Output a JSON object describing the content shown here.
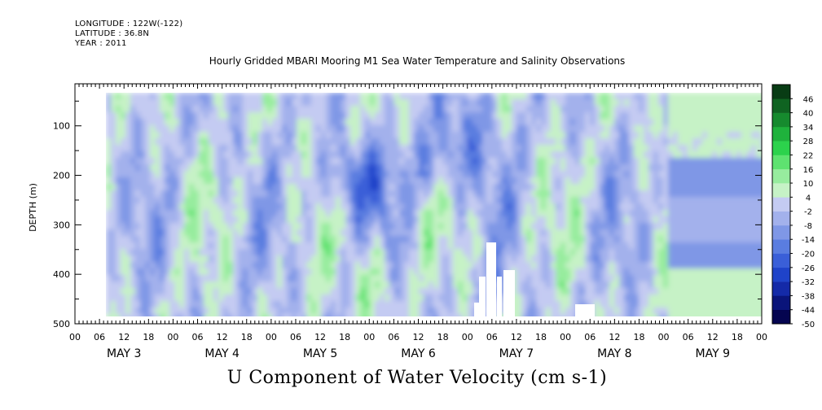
{
  "header": {
    "longitude": "LONGITUDE : 122W(-122)",
    "latitude": "LATITUDE : 36.8N",
    "year": "YEAR : 2011"
  },
  "chart_data": {
    "type": "heatmap",
    "title": "Hourly Gridded MBARI Mooring M1 Sea Water Temperature and Salinity Observations",
    "bottom_title": "U Component of Water Velocity (cm s-1)",
    "ylabel": "DEPTH (m)",
    "y_ticks": [
      100,
      200,
      300,
      400,
      500
    ],
    "y_tick_labels": [
      "100",
      "200",
      "300",
      "400",
      "500"
    ],
    "ylim": [
      15,
      500
    ],
    "x_hour_labels": [
      "00",
      "06",
      "12",
      "18",
      "00",
      "06",
      "12",
      "18",
      "00",
      "06",
      "12",
      "18",
      "00",
      "06",
      "12",
      "18",
      "00",
      "06",
      "12",
      "18",
      "00",
      "06",
      "12",
      "18",
      "00",
      "06",
      "12",
      "18",
      "00"
    ],
    "x_day_labels": [
      "MAY 3",
      "MAY 4",
      "MAY 5",
      "MAY 6",
      "MAY 7",
      "MAY 8",
      "MAY 9"
    ],
    "colorbar": {
      "levels": [
        -50,
        -44,
        -38,
        -32,
        -26,
        -20,
        -14,
        -8,
        -2,
        4,
        10,
        16,
        22,
        28,
        34,
        40,
        46
      ],
      "level_labels": [
        "-50",
        "-44",
        "-38",
        "-32",
        "-26",
        "-20",
        "-14",
        "-8",
        "-2",
        "4",
        "10",
        "16",
        "22",
        "28",
        "34",
        "40",
        "46"
      ],
      "colors": [
        "#050550",
        "#0a147a",
        "#142aa8",
        "#1f43c9",
        "#3a5fd8",
        "#5a7de0",
        "#7f97e6",
        "#a3b1ec",
        "#c4cbf2",
        "#c6f2c6",
        "#97ec9e",
        "#5ee270",
        "#2cd24c",
        "#1fb23c",
        "#168a2e",
        "#0f6321",
        "#083c14"
      ]
    },
    "colors": {
      "negative": "#a3b1ec",
      "positive": "#5ee270",
      "missing": "#ffffff"
    }
  }
}
